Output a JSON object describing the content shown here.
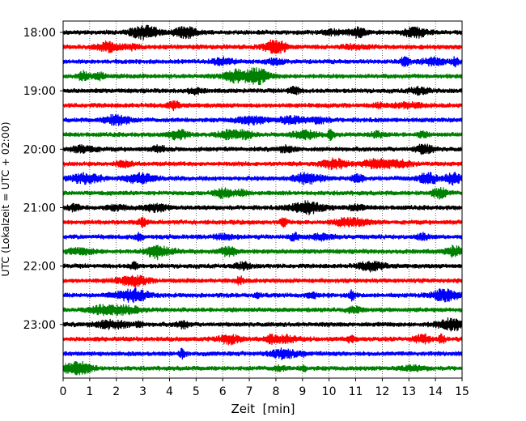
{
  "chart_data": {
    "type": "line",
    "xlabel": "Zeit  [min]",
    "ylabel": "UTC (Lokalzeit = UTC + 02:00)",
    "xlim": [
      0,
      15
    ],
    "x_ticks": [
      0,
      1,
      2,
      3,
      4,
      5,
      6,
      7,
      8,
      9,
      10,
      11,
      12,
      13,
      14,
      15
    ],
    "y_tick_labels": [
      "18:00",
      "19:00",
      "20:00",
      "21:00",
      "22:00",
      "23:00"
    ],
    "grid": "vertical dotted at each minute",
    "colors_cycle": [
      "#000000",
      "#ff0000",
      "#0000ff",
      "#008000"
    ],
    "traces": [
      {
        "start": "18:00",
        "color": "#000000"
      },
      {
        "start": "18:15",
        "color": "#ff0000"
      },
      {
        "start": "18:30",
        "color": "#0000ff"
      },
      {
        "start": "18:45",
        "color": "#008000"
      },
      {
        "start": "19:00",
        "color": "#000000"
      },
      {
        "start": "19:15",
        "color": "#ff0000"
      },
      {
        "start": "19:30",
        "color": "#0000ff"
      },
      {
        "start": "19:45",
        "color": "#008000"
      },
      {
        "start": "20:00",
        "color": "#000000"
      },
      {
        "start": "20:15",
        "color": "#ff0000"
      },
      {
        "start": "20:30",
        "color": "#0000ff"
      },
      {
        "start": "20:45",
        "color": "#008000"
      },
      {
        "start": "21:00",
        "color": "#000000"
      },
      {
        "start": "21:15",
        "color": "#ff0000"
      },
      {
        "start": "21:30",
        "color": "#0000ff"
      },
      {
        "start": "21:45",
        "color": "#008000"
      },
      {
        "start": "22:00",
        "color": "#000000"
      },
      {
        "start": "22:15",
        "color": "#ff0000"
      },
      {
        "start": "22:30",
        "color": "#0000ff"
      },
      {
        "start": "22:45",
        "color": "#008000"
      },
      {
        "start": "23:00",
        "color": "#000000"
      },
      {
        "start": "23:15",
        "color": "#ff0000"
      },
      {
        "start": "23:30",
        "color": "#0000ff"
      },
      {
        "start": "23:45",
        "color": "#008000"
      }
    ]
  }
}
